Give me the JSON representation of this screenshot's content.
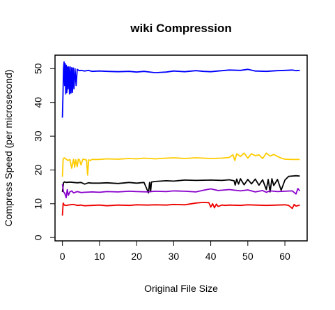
{
  "chart_data": {
    "type": "line",
    "title": "wiki Compression",
    "xlabel": "Original File Size",
    "ylabel": "Compress Speed (per microsecond)",
    "xlim": [
      -2,
      66
    ],
    "ylim": [
      -1,
      54
    ],
    "x_ticks": [
      0,
      10,
      20,
      30,
      40,
      50,
      60
    ],
    "y_ticks": [
      0,
      10,
      20,
      30,
      40,
      50
    ],
    "grid": false,
    "series": [
      {
        "color": "#0000ff",
        "x": [
          0,
          0.15,
          0.3,
          0.45,
          0.6,
          0.75,
          0.9,
          1.05,
          1.2,
          1.35,
          1.5,
          1.7,
          1.9,
          2.1,
          2.3,
          2.5,
          2.7,
          2.9,
          3.1,
          3.4,
          3.7,
          4,
          4.5,
          5,
          6,
          7,
          8,
          10,
          12,
          15,
          18,
          20,
          22,
          25,
          28,
          30,
          33,
          36,
          38,
          40,
          42,
          45,
          48,
          50,
          52,
          55,
          58,
          60,
          62,
          63,
          64
        ],
        "y": [
          35.5,
          42,
          50,
          52,
          45,
          51.5,
          42.5,
          51,
          43,
          50.5,
          44,
          50.5,
          42.5,
          50.5,
          42.8,
          50.3,
          43,
          50.2,
          44,
          50,
          45,
          49.8,
          49.4,
          49.5,
          49.3,
          49.5,
          49.2,
          49.3,
          49.2,
          49.1,
          49.2,
          49,
          49.2,
          48.8,
          49,
          49.3,
          49.1,
          49.4,
          49.2,
          49.1,
          49.3,
          49.6,
          49.5,
          49.8,
          49.3,
          49.2,
          49.4,
          49.5,
          49.6,
          49.4,
          49.5
        ]
      },
      {
        "color": "#ffcc00",
        "x": [
          0,
          0.2,
          0.5,
          1,
          1.5,
          2,
          2.5,
          3,
          3.3,
          3.6,
          4,
          4.3,
          4.6,
          5,
          5.5,
          6,
          6.5,
          6.8,
          7.1,
          7.5,
          8,
          10,
          12,
          15,
          18,
          20,
          22,
          25,
          28,
          30,
          33,
          36,
          40,
          43,
          45,
          46,
          46.5,
          47,
          48,
          49,
          50,
          51,
          52,
          53,
          54,
          55,
          56,
          57,
          58,
          59,
          60,
          62,
          64
        ],
        "y": [
          18,
          23.3,
          23.6,
          23.2,
          22.8,
          23.1,
          20.5,
          23.2,
          20.8,
          23,
          21,
          23.2,
          23,
          21.5,
          23.2,
          23.1,
          22.9,
          18.5,
          23,
          22.8,
          23.1,
          23.1,
          23.3,
          23.2,
          23.4,
          23.3,
          23.5,
          23.3,
          23.5,
          23.6,
          23.4,
          23.6,
          23.4,
          23.5,
          23.7,
          24.5,
          22.8,
          24.8,
          24,
          25,
          23.5,
          24.8,
          24.2,
          24.5,
          23.4,
          25,
          24.1,
          24.6,
          24,
          23.5,
          23.2,
          23.1,
          23.1
        ]
      },
      {
        "color": "#000000",
        "x": [
          0,
          0.3,
          0.6,
          1,
          2,
          3,
          4,
          5,
          6,
          7,
          8,
          10,
          12,
          15,
          18,
          20,
          22,
          23.2,
          23.5,
          23.8,
          24,
          25,
          28,
          30,
          33,
          36,
          40,
          43,
          45,
          46.3,
          46.6,
          47,
          47.5,
          48,
          49,
          50,
          51,
          52,
          53,
          54,
          55,
          55.5,
          56,
          56.5,
          57,
          58,
          59,
          60,
          61,
          62,
          63,
          64
        ],
        "y": [
          13.5,
          16.2,
          16.5,
          16.3,
          16.4,
          16.3,
          16.2,
          16.3,
          15.8,
          16.2,
          16.1,
          16.1,
          16.2,
          16,
          16.3,
          16.1,
          16.3,
          13.2,
          16.3,
          13.6,
          16.4,
          16.6,
          16.8,
          16.7,
          17,
          16.9,
          17,
          16.9,
          17.1,
          16.8,
          15.5,
          17.3,
          15.8,
          17.4,
          15.6,
          17.2,
          15.9,
          17.3,
          15.5,
          17.1,
          14.2,
          17.2,
          13.5,
          17.4,
          15.4,
          17.2,
          14,
          17,
          18.1,
          18.2,
          18.3,
          18.2
        ]
      },
      {
        "color": "#8800cc",
        "x": [
          0,
          0.3,
          0.6,
          1,
          1.3,
          1.6,
          2,
          2.5,
          3,
          4,
          5,
          6,
          8,
          10,
          12,
          15,
          18,
          20,
          23,
          25,
          28,
          30,
          33,
          36,
          38,
          40,
          42,
          45,
          48,
          50,
          52,
          54,
          55,
          56,
          58,
          60,
          62,
          63,
          63.5,
          64
        ],
        "y": [
          15.8,
          13.5,
          13.2,
          11.8,
          14.2,
          12.5,
          13.5,
          13.8,
          13.2,
          13.6,
          13.3,
          13.4,
          13.5,
          13.4,
          13.6,
          13.5,
          13.7,
          13.6,
          13.5,
          13.7,
          13.6,
          13.8,
          13.7,
          13.5,
          14,
          14.4,
          13.9,
          14.2,
          13.8,
          14.1,
          13.5,
          13.9,
          13.4,
          13.8,
          13.6,
          13.7,
          13.8,
          12.9,
          14.5,
          13.8
        ]
      },
      {
        "color": "#ee0000",
        "x": [
          0,
          0.2,
          0.5,
          1,
          2,
          3,
          4,
          5,
          6,
          8,
          10,
          12,
          15,
          18,
          20,
          23,
          25,
          28,
          30,
          33,
          36,
          38,
          39.5,
          40,
          40.5,
          41,
          41.5,
          42,
          43,
          44,
          45,
          48,
          50,
          52,
          55,
          58,
          60,
          61,
          62,
          62.5,
          63,
          64
        ],
        "y": [
          6.5,
          10.2,
          9.6,
          9.5,
          9.7,
          9.8,
          9.5,
          9.6,
          9.4,
          9.5,
          9.6,
          9.4,
          9.6,
          9.5,
          9.7,
          9.6,
          9.7,
          9.6,
          9.8,
          9.7,
          10.2,
          10.4,
          10.3,
          9,
          10,
          8.8,
          9.9,
          9.2,
          9.6,
          9.5,
          9.6,
          9.5,
          9.7,
          9.6,
          9.5,
          9.6,
          9.7,
          9.5,
          8.6,
          9.8,
          9.3,
          9.6
        ]
      }
    ]
  }
}
